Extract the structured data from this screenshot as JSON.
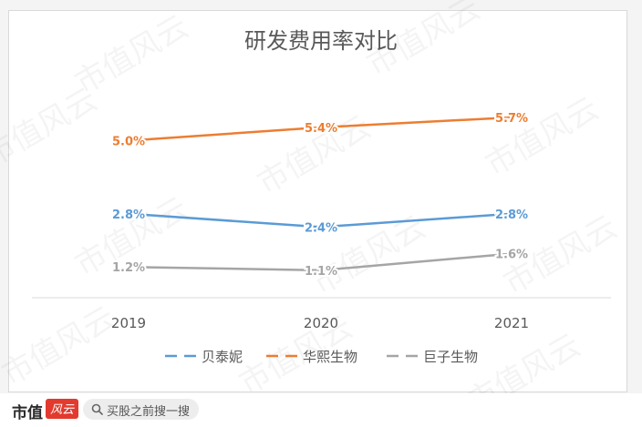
{
  "chart_data": {
    "type": "line",
    "title": "研发费用率对比",
    "categories": [
      "2019",
      "2020",
      "2021"
    ],
    "ylim": [
      0,
      6.6
    ],
    "grid": false,
    "legend_position": "bottom",
    "series": [
      {
        "name": "贝泰妮",
        "values": [
          2.8,
          2.4,
          2.8
        ],
        "labels": [
          "2.8%",
          "2.4%",
          "2.8%"
        ],
        "color": "#5b9bd5"
      },
      {
        "name": "华熙生物",
        "values": [
          5.0,
          5.4,
          5.7
        ],
        "labels": [
          "5.0%",
          "5.4%",
          "5.7%"
        ],
        "color": "#ed7d31"
      },
      {
        "name": "巨子生物",
        "values": [
          1.2,
          1.1,
          1.6
        ],
        "labels": [
          "1.2%",
          "1.1%",
          "1.6%"
        ],
        "color": "#a5a5a5"
      }
    ]
  },
  "watermark": "市值风云",
  "footer": {
    "brand": "市值",
    "logo_text": "风云",
    "search_placeholder": "买股之前搜一搜"
  },
  "colors": {
    "axis": "#d9d9d9",
    "tick_text": "#595959",
    "title_text": "#595959",
    "brand_red": "#e23a2e"
  }
}
